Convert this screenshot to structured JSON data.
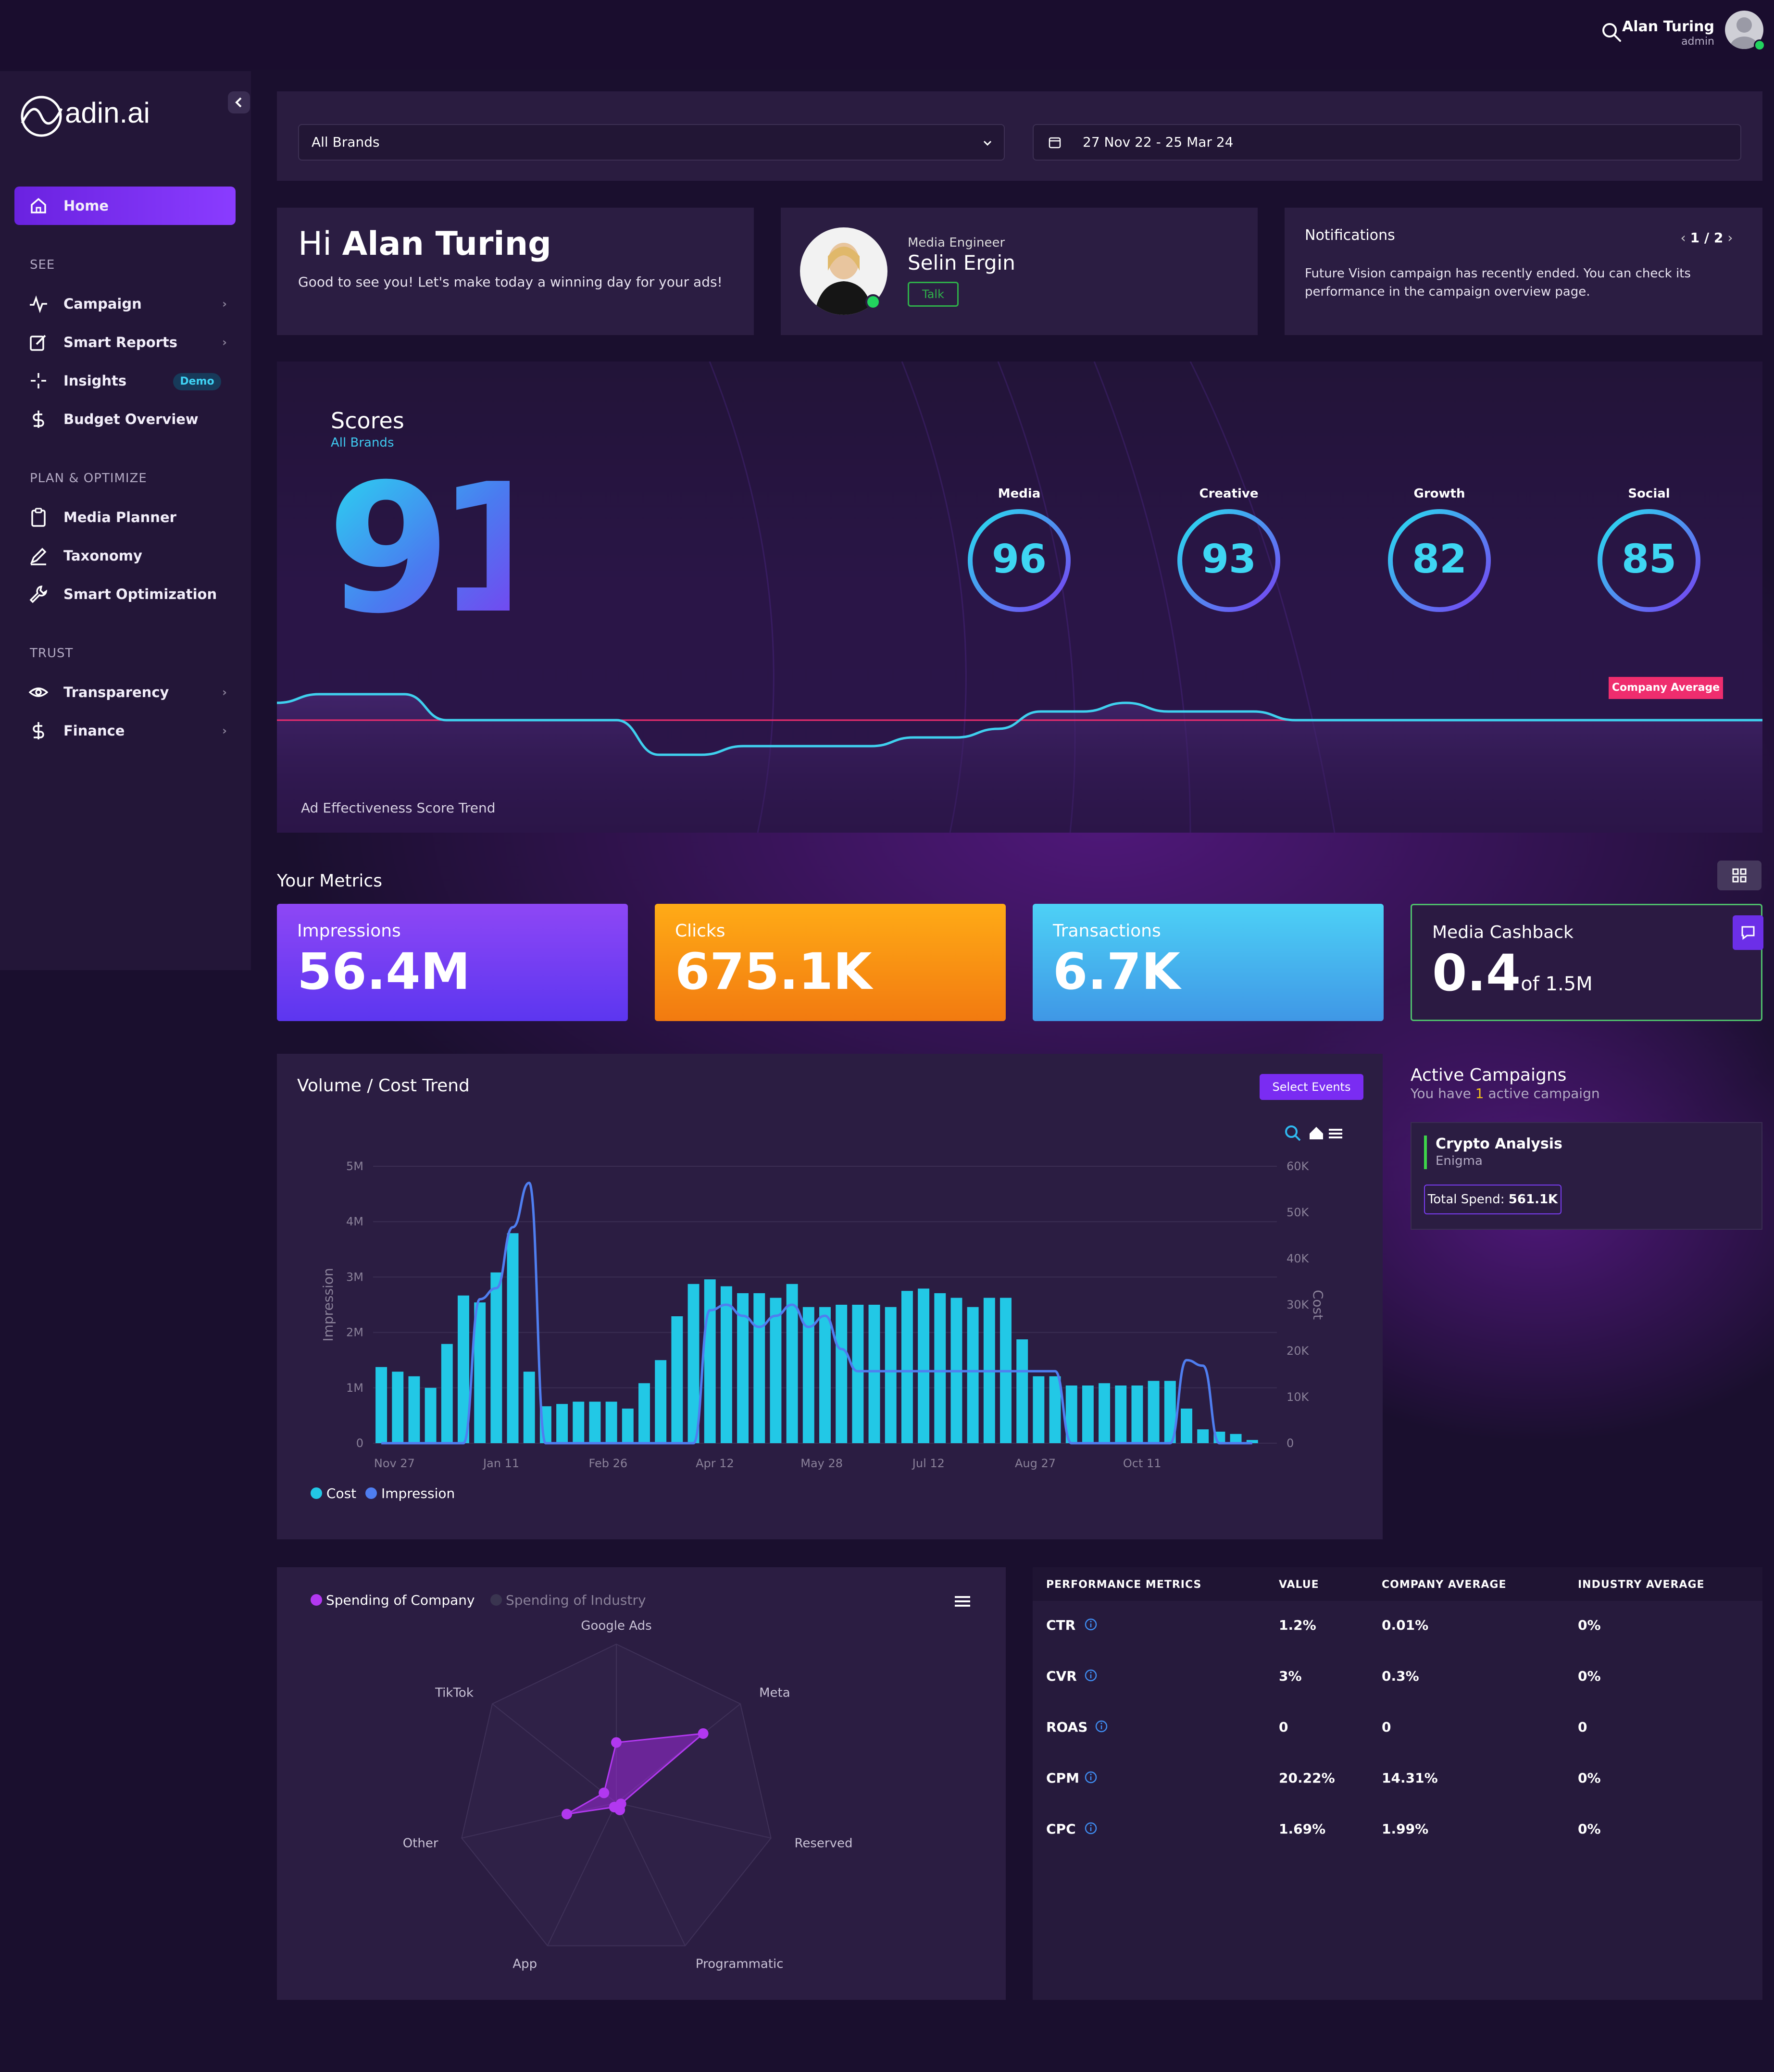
{
  "app": {
    "logo_text": "adin.ai"
  },
  "user": {
    "name": "Alan Turing",
    "role": "admin"
  },
  "sidebar": {
    "home": "Home",
    "sections": {
      "see": "SEE",
      "plan": "PLAN & OPTIMIZE",
      "trust": "TRUST"
    },
    "items": {
      "campaign": "Campaign",
      "smart_reports": "Smart Reports",
      "insights": "Insights",
      "insights_badge": "Demo",
      "budget": "Budget Overview",
      "media_planner": "Media Planner",
      "taxonomy": "Taxonomy",
      "smart_opt": "Smart Optimization",
      "transparency": "Transparency",
      "finance": "Finance"
    }
  },
  "filters": {
    "brand": "All Brands",
    "date_range": "27 Nov 22 - 25 Mar 24"
  },
  "greeting": {
    "hi": "Hi",
    "name": "Alan Turing",
    "subtitle": "Good to see you! Let's make today a winning day for your ads!"
  },
  "engineer": {
    "role": "Media Engineer",
    "name": "Selin Ergin",
    "talk": "Talk"
  },
  "notifications": {
    "title": "Notifications",
    "page": "1 / 2",
    "text": "Future Vision campaign has recently ended. You can check its performance in the campaign overview page."
  },
  "scores": {
    "title": "Scores",
    "subtitle": "All Brands",
    "overall": "91",
    "items": [
      {
        "label": "Media",
        "value": 96
      },
      {
        "label": "Creative",
        "value": 93
      },
      {
        "label": "Growth",
        "value": 82
      },
      {
        "label": "Social",
        "value": 85
      }
    ],
    "trend_label": "Ad Effectiveness Score Trend",
    "company_avg_label": "Company Average",
    "trend_values": [
      88,
      89,
      89,
      89,
      86,
      86,
      86,
      86,
      86,
      82,
      82,
      83,
      83,
      83,
      83,
      84,
      84,
      85,
      87,
      87,
      88,
      87,
      87,
      87,
      86,
      86,
      86,
      86,
      86,
      86,
      86,
      86,
      86,
      86,
      86,
      86
    ],
    "company_avg_value": 86
  },
  "metrics": {
    "title": "Your Metrics",
    "impressions": {
      "label": "Impressions",
      "value": "56.4M"
    },
    "clicks": {
      "label": "Clicks",
      "value": "675.1K"
    },
    "transactions": {
      "label": "Transactions",
      "value": "6.7K"
    },
    "cashback": {
      "label": "Media Cashback",
      "value": "0.4",
      "of": "of 1.5M"
    }
  },
  "volume": {
    "title": "Volume / Cost Trend",
    "select_events": "Select Events",
    "legend": {
      "cost": "Cost",
      "impression": "Impression"
    }
  },
  "chart_data": {
    "type": "bar",
    "title": "Volume / Cost Trend",
    "ylabel": "Impression",
    "y2label": "Cost",
    "ylim": [
      0,
      5000000
    ],
    "y2lim": [
      0,
      60000
    ],
    "y_ticks": [
      "0",
      "1M",
      "2M",
      "3M",
      "4M",
      "5M"
    ],
    "y2_ticks": [
      "0",
      "10K",
      "20K",
      "30K",
      "40K",
      "50K",
      "60K"
    ],
    "x_ticks": [
      "Nov 27",
      "Jan 11",
      "Feb 26",
      "Apr 12",
      "May 28",
      "Jul 12",
      "Aug 27",
      "Oct 11"
    ],
    "series": [
      {
        "name": "Cost",
        "type": "bar",
        "color": "#22c8e6",
        "values": [
          16500,
          15500,
          14500,
          12000,
          21500,
          32000,
          30500,
          37000,
          45500,
          15500,
          8000,
          8500,
          9000,
          9000,
          9000,
          7500,
          13000,
          18000,
          27500,
          34500,
          35500,
          34000,
          32500,
          32500,
          31500,
          34500,
          29500,
          29500,
          30000,
          30000,
          30000,
          29500,
          33000,
          33500,
          32500,
          31500,
          29500,
          31500,
          31500,
          22500,
          14500,
          14500,
          12500,
          12500,
          13000,
          12500,
          12500,
          13500,
          13500,
          7500,
          3000,
          2500,
          2000,
          700
        ]
      },
      {
        "name": "Impression",
        "type": "line",
        "color": "#4f7ef0",
        "values": [
          0,
          0,
          0,
          0,
          0,
          0,
          2600000,
          2800000,
          3900000,
          4700000,
          0,
          0,
          0,
          0,
          0,
          0,
          0,
          0,
          0,
          0,
          2400000,
          2500000,
          2300000,
          2100000,
          2300000,
          2500000,
          2100000,
          2300000,
          1700000,
          1300000,
          1300000,
          1300000,
          1300000,
          1300000,
          1300000,
          1300000,
          1300000,
          1300000,
          1300000,
          1300000,
          1300000,
          1300000,
          0,
          0,
          0,
          0,
          0,
          0,
          0,
          1500000,
          1400000,
          0,
          0,
          0
        ]
      }
    ]
  },
  "active_campaigns": {
    "title": "Active Campaigns",
    "sub_pre": "You have",
    "sub_count": "1",
    "sub_post": "active campaign",
    "campaign": {
      "name": "Crypto Analysis",
      "brand": "Enigma",
      "spend_label": "Total Spend:",
      "spend": "561.1K"
    }
  },
  "radar": {
    "legend": {
      "company": "Spending of Company",
      "industry": "Spending of Industry"
    },
    "axes": [
      "Google Ads",
      "Meta",
      "Reserved",
      "Programmatic",
      "App",
      "Other",
      "TikTok"
    ],
    "company_values": [
      0.38,
      0.7,
      0.02,
      0.05,
      0.0,
      0.32,
      0.1
    ]
  },
  "performance": {
    "headers": [
      "PERFORMANCE METRICS",
      "VALUE",
      "COMPANY AVERAGE",
      "INDUSTRY AVERAGE"
    ],
    "rows": [
      {
        "metric": "CTR",
        "value": "1.2%",
        "company": "0.01%",
        "industry": "0%"
      },
      {
        "metric": "CVR",
        "value": "3%",
        "company": "0.3%",
        "industry": "0%"
      },
      {
        "metric": "ROAS",
        "value": "0",
        "company": "0",
        "industry": "0"
      },
      {
        "metric": "CPM",
        "value": "20.22%",
        "company": "14.31%",
        "industry": "0%"
      },
      {
        "metric": "CPC",
        "value": "1.69%",
        "company": "1.99%",
        "industry": "0%"
      }
    ]
  },
  "colors": {
    "accent": "#7a2cf2",
    "cyan": "#3ed6f3",
    "green": "#22d35e",
    "pink": "#ef2d6e"
  }
}
